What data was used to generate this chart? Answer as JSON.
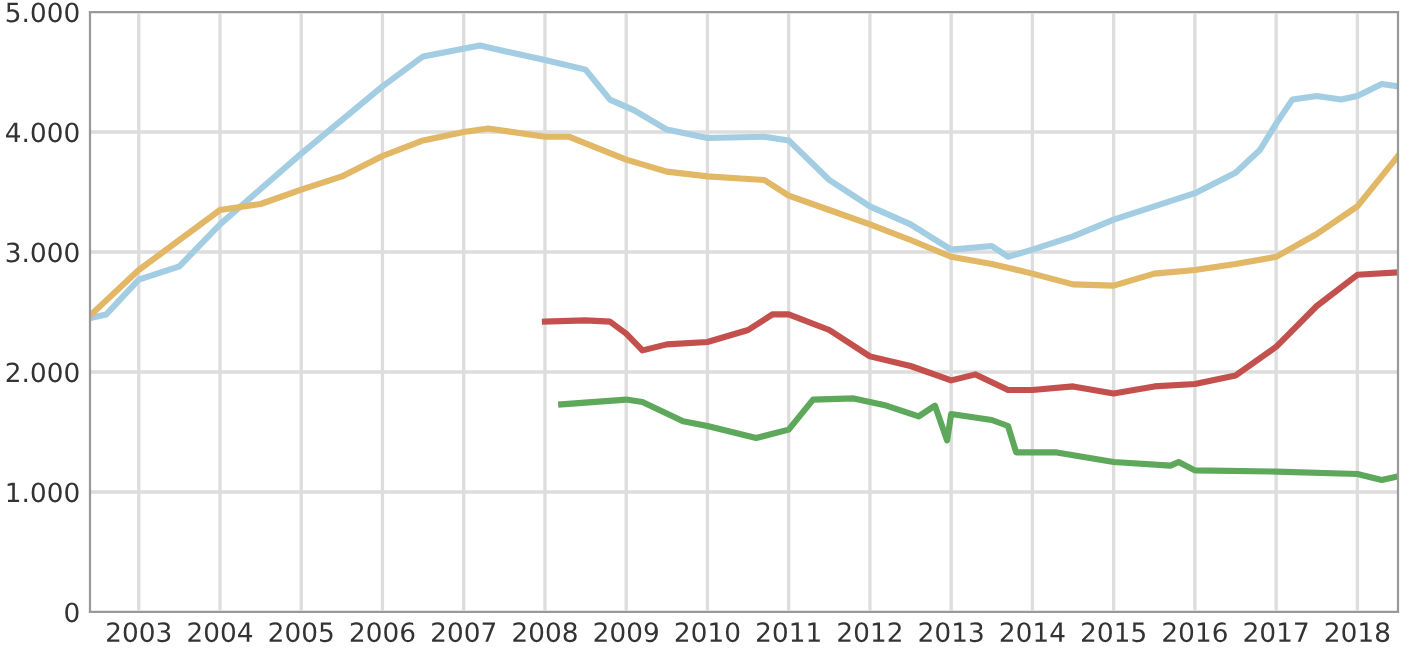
{
  "chart_data": {
    "type": "line",
    "xlim": [
      2002.4,
      2018.5
    ],
    "xticks": [
      2003,
      2004,
      2005,
      2006,
      2007,
      2008,
      2009,
      2010,
      2011,
      2012,
      2013,
      2014,
      2015,
      2016,
      2017,
      2018
    ],
    "ylim": [
      0,
      5000
    ],
    "yticks": [
      {
        "value": 0,
        "label": "0"
      },
      {
        "value": 1000,
        "label": "1.000"
      },
      {
        "value": 2000,
        "label": "2.000"
      },
      {
        "value": 3000,
        "label": "3.000"
      },
      {
        "value": 4000,
        "label": "4.000"
      },
      {
        "value": 5000,
        "label": "5.000"
      }
    ],
    "grid": true,
    "line_style": "solid",
    "marker": "none",
    "series": [
      {
        "color": "#a3cde2",
        "x": [
          2002.4,
          2002.6,
          2003,
          2003.5,
          2004,
          2005,
          2006,
          2006.5,
          2007.2,
          2008,
          2008.5,
          2008.8,
          2009.1,
          2009.5,
          2010,
          2010.7,
          2011,
          2011.5,
          2012,
          2012.5,
          2013,
          2013.5,
          2013.7,
          2014,
          2014.5,
          2015,
          2015.5,
          2016,
          2016.5,
          2016.8,
          2017,
          2017.2,
          2017.5,
          2017.8,
          2018,
          2018.3,
          2018.5
        ],
        "values": [
          2450,
          2480,
          2770,
          2880,
          3230,
          3820,
          4380,
          4630,
          4720,
          4600,
          4520,
          4270,
          4180,
          4020,
          3950,
          3960,
          3930,
          3600,
          3380,
          3230,
          3020,
          3050,
          2960,
          3020,
          3130,
          3270,
          3380,
          3490,
          3660,
          3850,
          4070,
          4270,
          4300,
          4270,
          4300,
          4400,
          4380
        ]
      },
      {
        "color": "#e2b765",
        "x": [
          2002.4,
          2003,
          2003.5,
          2004,
          2004.5,
          2005,
          2005.5,
          2006,
          2006.5,
          2007,
          2007.3,
          2008,
          2008.3,
          2009,
          2009.5,
          2010,
          2010.7,
          2011,
          2011.5,
          2012,
          2012.5,
          2013,
          2013.5,
          2014,
          2014.5,
          2015,
          2015.5,
          2016,
          2016.5,
          2017,
          2017.5,
          2018,
          2018.5
        ],
        "values": [
          2470,
          2850,
          3100,
          3350,
          3400,
          3520,
          3630,
          3800,
          3930,
          4000,
          4030,
          3960,
          3960,
          3770,
          3670,
          3630,
          3600,
          3470,
          3350,
          3230,
          3100,
          2960,
          2900,
          2820,
          2730,
          2720,
          2820,
          2850,
          2900,
          2960,
          3150,
          3380,
          3800
        ]
      },
      {
        "color": "#c4504e",
        "x": [
          2008,
          2008.5,
          2008.8,
          2009,
          2009.2,
          2009.5,
          2010,
          2010.5,
          2010.8,
          2011,
          2011.5,
          2012,
          2012.5,
          2013,
          2013.3,
          2013.7,
          2014,
          2014.5,
          2015,
          2015.5,
          2016,
          2016.5,
          2017,
          2017.5,
          2018,
          2018.5
        ],
        "values": [
          2420,
          2430,
          2420,
          2320,
          2180,
          2230,
          2250,
          2350,
          2480,
          2480,
          2350,
          2130,
          2050,
          1930,
          1980,
          1850,
          1850,
          1880,
          1820,
          1880,
          1900,
          1970,
          2210,
          2550,
          2810,
          2830
        ]
      },
      {
        "color": "#5da85a",
        "x": [
          2008.2,
          2009,
          2009.2,
          2009.7,
          2010,
          2010.6,
          2011,
          2011.3,
          2011.8,
          2012.2,
          2012.6,
          2012.8,
          2012.95,
          2013,
          2013.5,
          2013.7,
          2013.8,
          2014.3,
          2015,
          2015.7,
          2015.8,
          2016,
          2017,
          2018,
          2018.3,
          2018.5
        ],
        "values": [
          1730,
          1770,
          1750,
          1590,
          1550,
          1450,
          1520,
          1770,
          1780,
          1720,
          1630,
          1720,
          1430,
          1650,
          1600,
          1550,
          1330,
          1330,
          1250,
          1220,
          1250,
          1180,
          1170,
          1150,
          1100,
          1130
        ]
      }
    ]
  }
}
